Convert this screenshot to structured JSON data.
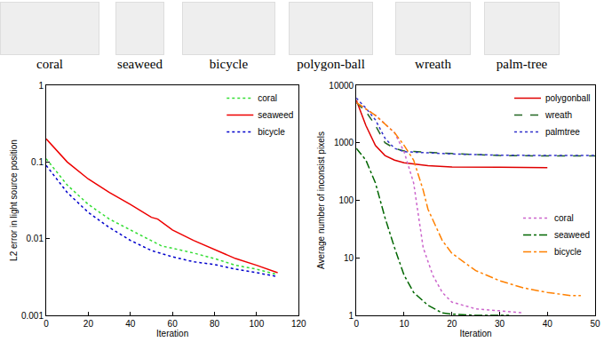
{
  "thumbnails": {
    "labels": [
      "coral",
      "seaweed",
      "bicycle",
      "polygon-ball",
      "wreath",
      "palm-tree"
    ]
  },
  "chart_data": [
    {
      "type": "line",
      "x_label": "Iteration",
      "y_label": "L2 error in light source position",
      "xlim": [
        0,
        120
      ],
      "xticks": [
        0,
        20,
        40,
        60,
        80,
        100,
        120
      ],
      "ylim": [
        0.001,
        1
      ],
      "yticks": [
        0.001,
        0.01,
        0.1,
        1
      ],
      "log": "y",
      "legend": "upper right",
      "series": [
        {
          "name": "coral",
          "color": "#33dd33",
          "line_style": "dot",
          "x": [
            0,
            10,
            20,
            30,
            40,
            50,
            55,
            60,
            70,
            80,
            90,
            100,
            110
          ],
          "values": [
            0.11,
            0.05,
            0.028,
            0.018,
            0.013,
            0.0095,
            0.008,
            0.0075,
            0.0065,
            0.0055,
            0.0045,
            0.004,
            0.0034
          ]
        },
        {
          "name": "seaweed",
          "color": "#ee0000",
          "line_style": "solid",
          "x": [
            0,
            10,
            20,
            30,
            40,
            50,
            53,
            60,
            70,
            80,
            90,
            100,
            110
          ],
          "values": [
            0.2,
            0.1,
            0.06,
            0.04,
            0.028,
            0.019,
            0.018,
            0.013,
            0.0095,
            0.0072,
            0.0055,
            0.0045,
            0.0036
          ]
        },
        {
          "name": "bicycle",
          "color": "#0000cc",
          "line_style": "dot",
          "x": [
            0,
            10,
            20,
            30,
            40,
            50,
            60,
            70,
            80,
            90,
            100,
            110
          ],
          "values": [
            0.09,
            0.04,
            0.022,
            0.014,
            0.0095,
            0.007,
            0.0058,
            0.005,
            0.0046,
            0.004,
            0.0036,
            0.0032
          ]
        }
      ]
    },
    {
      "type": "line",
      "x_label": "Iteration",
      "y_label": "Average number of inconsist pixels",
      "xlim": [
        0,
        50
      ],
      "xticks": [
        0,
        10,
        20,
        30,
        40,
        50
      ],
      "ylim": [
        1,
        10000
      ],
      "yticks": [
        1,
        10,
        100,
        1000,
        10000
      ],
      "log": "y",
      "series": [
        {
          "name": "polygonball",
          "color": "#e00000",
          "line_style": "solid",
          "legend": "upper right",
          "x": [
            0,
            2,
            4,
            6,
            8,
            10,
            15,
            20,
            30,
            40
          ],
          "values": [
            5500,
            2000,
            900,
            600,
            500,
            450,
            400,
            380,
            375,
            370
          ]
        },
        {
          "name": "wreath",
          "color": "#226622",
          "line_style": "dash",
          "legend": "upper right",
          "x": [
            0,
            2,
            4,
            6,
            8,
            10,
            20,
            30,
            40,
            50
          ],
          "values": [
            5000,
            3500,
            2000,
            1000,
            800,
            720,
            650,
            600,
            590,
            590
          ]
        },
        {
          "name": "palmtree",
          "color": "#3333cc",
          "line_style": "dot",
          "legend": "upper right",
          "x": [
            0,
            2,
            4,
            6,
            8,
            10,
            20,
            30,
            40,
            50
          ],
          "values": [
            6000,
            4000,
            2500,
            1200,
            800,
            700,
            640,
            610,
            600,
            600
          ]
        },
        {
          "name": "coral",
          "color": "#cc66cc",
          "line_style": "dot",
          "legend": "lower right",
          "x": [
            0,
            4,
            8,
            10,
            12,
            13,
            14,
            16,
            18,
            20,
            25,
            30,
            35
          ],
          "values": [
            5000,
            3000,
            1500,
            700,
            200,
            50,
            15,
            5,
            2.5,
            1.7,
            1.3,
            1.2,
            1.1
          ]
        },
        {
          "name": "seaweed",
          "color": "#006600",
          "line_style": "dashdot",
          "legend": "lower right",
          "x": [
            0,
            2,
            4,
            6,
            8,
            10,
            12,
            15,
            18,
            20,
            25,
            32
          ],
          "values": [
            800,
            500,
            200,
            50,
            15,
            5,
            2.5,
            1.5,
            1.1,
            1.05,
            1,
            1
          ]
        },
        {
          "name": "bicycle",
          "color": "#ff8000",
          "line_style": "dashdot",
          "legend": "lower right",
          "x": [
            0,
            4,
            8,
            10,
            12,
            14,
            15,
            18,
            20,
            25,
            30,
            35,
            40,
            45,
            47
          ],
          "values": [
            5000,
            3000,
            1500,
            900,
            500,
            150,
            70,
            20,
            12,
            6,
            4,
            3,
            2.5,
            2.2,
            2.2
          ]
        }
      ]
    }
  ]
}
